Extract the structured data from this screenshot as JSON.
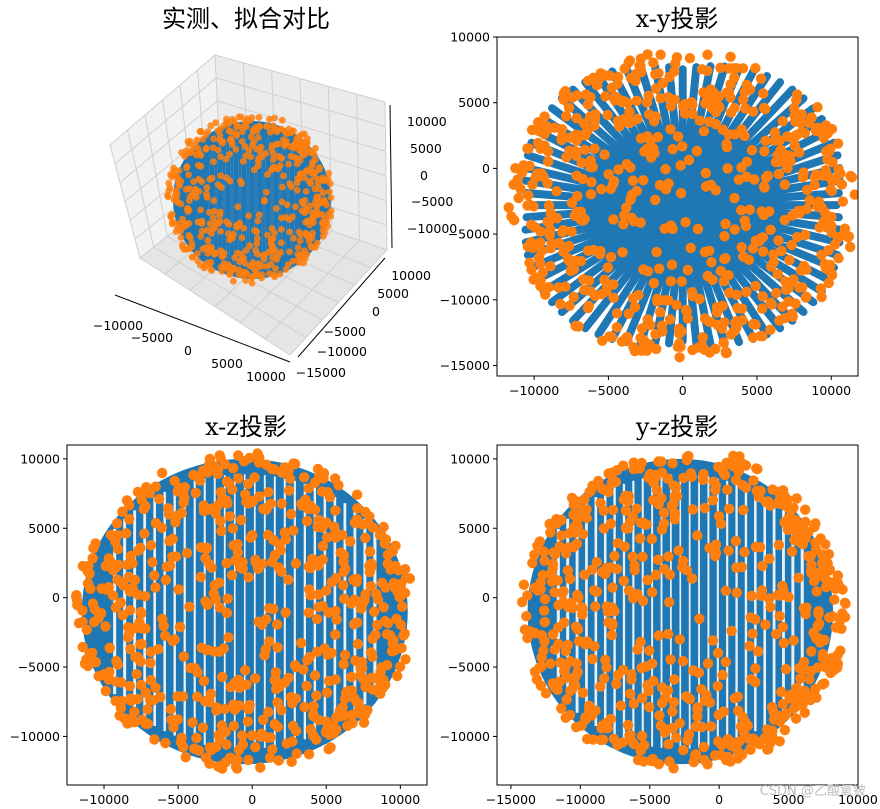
{
  "watermark": "CSDN @乙酸氧铍",
  "colors": {
    "fitted": "#1f77b4",
    "measured": "#ff7f0e",
    "pane": "#f2f2f2",
    "grid": "#d0d0d0"
  },
  "chart_data": [
    {
      "id": "3d",
      "type": "scatter3d",
      "title": "实测、拟合对比",
      "xlim": [
        -12000,
        12000
      ],
      "ylim": [
        -15000,
        10000
      ],
      "zlim": [
        -12000,
        12000
      ],
      "x_ticks": [
        "−10000",
        "−5000",
        "0",
        "5000",
        "10000"
      ],
      "y_ticks": [
        "−15000",
        "−10000",
        "−5000",
        "0",
        "5000",
        "10000"
      ],
      "z_ticks": [
        "−10000",
        "−5000",
        "0",
        "5000",
        "10000"
      ],
      "series": [
        {
          "role": "fit",
          "center": [
            0,
            -2500,
            -1000
          ],
          "radius": 11000
        },
        {
          "role": "measured",
          "points": 900
        }
      ]
    },
    {
      "id": "xy",
      "type": "scatter",
      "title": "x-y投影",
      "xlim": [
        -12500,
        11800
      ],
      "ylim": [
        -15800,
        10000
      ],
      "x_ticks": [
        {
          "v": -10000,
          "t": "−10000"
        },
        {
          "v": -5000,
          "t": "−5000"
        },
        {
          "v": 0,
          "t": "0"
        },
        {
          "v": 5000,
          "t": "5000"
        },
        {
          "v": 10000,
          "t": "10000"
        }
      ],
      "y_ticks": [
        {
          "v": 10000,
          "t": "10000"
        },
        {
          "v": 5000,
          "t": "5000"
        },
        {
          "v": 0,
          "t": "0"
        },
        {
          "v": -5000,
          "t": "−5000"
        },
        {
          "v": -10000,
          "t": "−10000"
        },
        {
          "v": -15000,
          "t": "−15000"
        }
      ],
      "fit": {
        "cx": 0,
        "cy": -2800,
        "r": 11500,
        "style": "spokes"
      },
      "measured": {
        "cx": 0,
        "cy": -2800,
        "r": 11300
      }
    },
    {
      "id": "xz",
      "type": "scatter",
      "title": "x-z投影",
      "xlim": [
        -12500,
        11800
      ],
      "ylim": [
        -13500,
        11000
      ],
      "x_ticks": [
        {
          "v": -10000,
          "t": "−10000"
        },
        {
          "v": -5000,
          "t": "−5000"
        },
        {
          "v": 0,
          "t": "0"
        },
        {
          "v": 5000,
          "t": "5000"
        },
        {
          "v": 10000,
          "t": "10000"
        }
      ],
      "y_ticks": [
        {
          "v": 10000,
          "t": "10000"
        },
        {
          "v": 5000,
          "t": "5000"
        },
        {
          "v": 0,
          "t": "0"
        },
        {
          "v": -5000,
          "t": "−5000"
        },
        {
          "v": -10000,
          "t": "−10000"
        }
      ],
      "fit": {
        "cx": -500,
        "cy": -1000,
        "r": 11000,
        "style": "stripes"
      },
      "measured": {
        "cx": -500,
        "cy": -1000,
        "r": 11000
      }
    },
    {
      "id": "yz",
      "type": "scatter",
      "title": "y-z投影",
      "xlim": [
        -16000,
        10000
      ],
      "ylim": [
        -13500,
        11000
      ],
      "x_ticks": [
        {
          "v": -15000,
          "t": "−15000"
        },
        {
          "v": -10000,
          "t": "−10000"
        },
        {
          "v": -5000,
          "t": "−5000"
        },
        {
          "v": 0,
          "t": "0"
        },
        {
          "v": 5000,
          "t": "5000"
        },
        {
          "v": 10000,
          "t": "10000"
        }
      ],
      "y_ticks": [
        {
          "v": 10000,
          "t": "10000"
        },
        {
          "v": 5000,
          "t": "5000"
        },
        {
          "v": 0,
          "t": "0"
        },
        {
          "v": -5000,
          "t": "−5000"
        },
        {
          "v": -10000,
          "t": "−10000"
        }
      ],
      "fit": {
        "cx": -2800,
        "cy": -1000,
        "r": 11000,
        "style": "stripes"
      },
      "measured": {
        "cx": -2800,
        "cy": -1000,
        "r": 11000
      }
    }
  ]
}
